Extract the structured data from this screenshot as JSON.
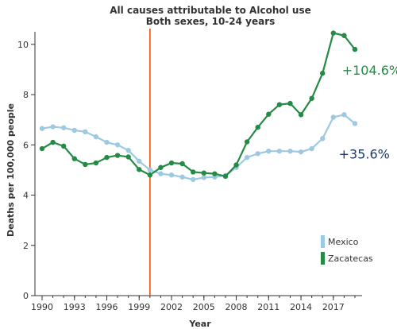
{
  "chart_data": {
    "type": "line",
    "title": "All causes attributable to Alcohol use",
    "subtitle": "Both sexes, 10-24 years",
    "xlabel": "Year",
    "ylabel": "Deaths per 100,000 people",
    "xlim": [
      1990,
      2019
    ],
    "ylim": [
      0,
      10.5
    ],
    "x_ticks": [
      1990,
      1993,
      1996,
      1999,
      2002,
      2005,
      2008,
      2011,
      2014,
      2017
    ],
    "x_tick_labels": [
      "1990",
      "1993",
      "1996",
      "1999",
      "2002",
      "2005",
      "2008",
      "2011",
      "2014",
      "2017"
    ],
    "y_ticks": [
      0,
      2,
      4,
      6,
      8,
      10
    ],
    "y_tick_labels": [
      "0",
      "2",
      "4",
      "6",
      "8",
      "10"
    ],
    "grid": false,
    "legend_position": "bottom-right",
    "x": [
      1990,
      1991,
      1992,
      1993,
      1994,
      1995,
      1996,
      1997,
      1998,
      1999,
      2000,
      2001,
      2002,
      2003,
      2004,
      2005,
      2006,
      2007,
      2008,
      2009,
      2010,
      2011,
      2012,
      2013,
      2014,
      2015,
      2016,
      2017,
      2018,
      2019
    ],
    "series": [
      {
        "name": "Mexico",
        "color": "#9ecae1",
        "values": [
          6.65,
          6.72,
          6.68,
          6.58,
          6.52,
          6.32,
          6.1,
          6.0,
          5.78,
          5.35,
          5.0,
          4.85,
          4.8,
          4.72,
          4.62,
          4.7,
          4.72,
          4.78,
          5.1,
          5.5,
          5.65,
          5.75,
          5.75,
          5.75,
          5.72,
          5.85,
          6.25,
          7.1,
          7.2,
          6.85
        ]
      },
      {
        "name": "Zacatecas",
        "color": "#238b45",
        "values": [
          5.85,
          6.1,
          5.95,
          5.45,
          5.22,
          5.28,
          5.5,
          5.58,
          5.52,
          5.02,
          4.8,
          5.1,
          5.28,
          5.25,
          4.92,
          4.88,
          4.85,
          4.75,
          5.2,
          6.12,
          6.7,
          7.22,
          7.6,
          7.65,
          7.2,
          7.85,
          8.85,
          10.45,
          10.35,
          9.8
        ]
      }
    ],
    "reference_line": {
      "x": 2000,
      "color": "#e6550d"
    },
    "annotations": [
      {
        "text": "+104.6%",
        "color": "#238b45",
        "x": 2017.8,
        "y": 8.8
      },
      {
        "text": "+35.6%",
        "color": "#1f3a68",
        "x": 2017.5,
        "y": 5.45
      }
    ]
  }
}
